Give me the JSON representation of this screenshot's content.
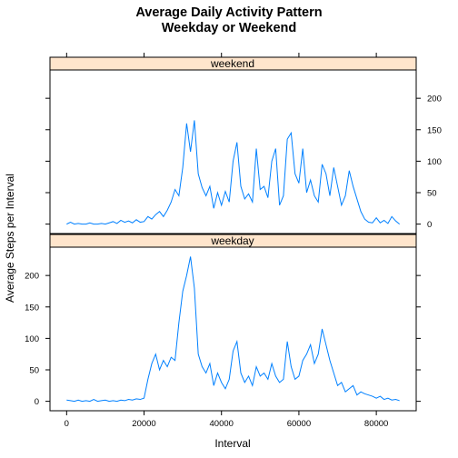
{
  "chart_data": {
    "type": "line",
    "title_lines": [
      "Average Daily Activity Pattern",
      "Weekday or Weekend"
    ],
    "xlabel": "Interval",
    "ylabel": "Average Steps per Interval",
    "xlim": [
      -4300,
      90300
    ],
    "ylim": [
      -15,
      245
    ],
    "x_ticks": [
      0,
      20000,
      40000,
      60000,
      80000
    ],
    "y_ticks": [
      0,
      50,
      100,
      150,
      200
    ],
    "strip_color": "#ffe5cc",
    "line_color": "#0080ff",
    "panels": [
      {
        "name": "weekend",
        "x": [
          0,
          1000,
          2000,
          3000,
          4000,
          5000,
          6000,
          7000,
          8000,
          9000,
          10000,
          11000,
          12000,
          13000,
          14000,
          15000,
          16000,
          17000,
          18000,
          19000,
          20000,
          21000,
          22000,
          23000,
          24000,
          25000,
          26000,
          27000,
          28000,
          29000,
          30000,
          31000,
          32000,
          33000,
          34000,
          35000,
          36000,
          37000,
          38000,
          39000,
          40000,
          41000,
          42000,
          43000,
          44000,
          45000,
          46000,
          47000,
          48000,
          49000,
          50000,
          51000,
          52000,
          53000,
          54000,
          55000,
          56000,
          57000,
          58000,
          59000,
          60000,
          61000,
          62000,
          63000,
          64000,
          65000,
          66000,
          67000,
          68000,
          69000,
          70000,
          71000,
          72000,
          73000,
          74000,
          75000,
          76000,
          77000,
          78000,
          79000,
          80000,
          81000,
          82000,
          83000,
          84000,
          85000,
          86000
        ],
        "values": [
          0,
          3,
          0,
          1,
          0,
          0,
          2,
          0,
          0,
          1,
          0,
          2,
          4,
          1,
          6,
          3,
          5,
          2,
          7,
          3,
          4,
          12,
          8,
          15,
          20,
          12,
          22,
          35,
          55,
          45,
          90,
          160,
          115,
          165,
          80,
          58,
          45,
          60,
          25,
          50,
          30,
          52,
          35,
          100,
          130,
          60,
          40,
          48,
          35,
          120,
          55,
          60,
          42,
          100,
          120,
          30,
          45,
          135,
          145,
          80,
          65,
          120,
          50,
          70,
          45,
          35,
          95,
          80,
          45,
          90,
          60,
          30,
          45,
          85,
          60,
          40,
          20,
          8,
          3,
          2,
          10,
          2,
          6,
          1,
          12,
          5,
          0
        ]
      },
      {
        "name": "weekday",
        "x": [
          0,
          1000,
          2000,
          3000,
          4000,
          5000,
          6000,
          7000,
          8000,
          9000,
          10000,
          11000,
          12000,
          13000,
          14000,
          15000,
          16000,
          17000,
          18000,
          19000,
          20000,
          21000,
          22000,
          23000,
          24000,
          25000,
          26000,
          27000,
          28000,
          29000,
          30000,
          31000,
          32000,
          33000,
          34000,
          35000,
          36000,
          37000,
          38000,
          39000,
          40000,
          41000,
          42000,
          43000,
          44000,
          45000,
          46000,
          47000,
          48000,
          49000,
          50000,
          51000,
          52000,
          53000,
          54000,
          55000,
          56000,
          57000,
          58000,
          59000,
          60000,
          61000,
          62000,
          63000,
          64000,
          65000,
          66000,
          67000,
          68000,
          69000,
          70000,
          71000,
          72000,
          73000,
          74000,
          75000,
          76000,
          77000,
          78000,
          79000,
          80000,
          81000,
          82000,
          83000,
          84000,
          85000,
          86000
        ],
        "values": [
          2,
          1,
          0,
          2,
          0,
          1,
          0,
          3,
          0,
          1,
          2,
          0,
          1,
          0,
          2,
          1,
          3,
          2,
          4,
          3,
          5,
          35,
          60,
          75,
          50,
          65,
          55,
          70,
          65,
          125,
          175,
          200,
          230,
          180,
          75,
          55,
          45,
          60,
          25,
          45,
          30,
          20,
          35,
          80,
          95,
          45,
          30,
          40,
          25,
          55,
          40,
          45,
          35,
          60,
          40,
          30,
          35,
          95,
          55,
          35,
          40,
          65,
          75,
          90,
          60,
          75,
          115,
          90,
          65,
          45,
          25,
          30,
          15,
          20,
          25,
          10,
          15,
          12,
          10,
          8,
          5,
          8,
          3,
          5,
          2,
          3,
          1
        ]
      }
    ]
  }
}
